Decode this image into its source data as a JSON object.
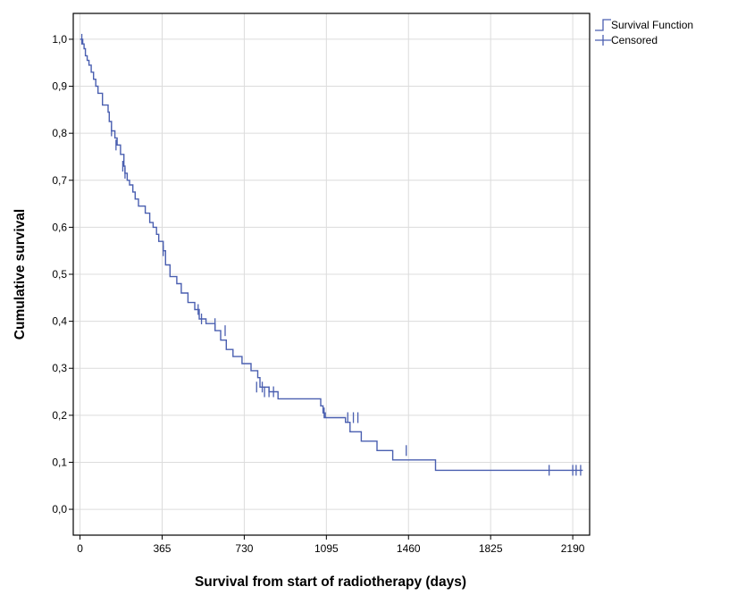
{
  "chart_data": {
    "type": "line",
    "subtype": "kaplan-meier step",
    "xlabel": "Survival from start of radiotherapy (days)",
    "ylabel": "Cumulative survival",
    "xlim": [
      -30,
      2265
    ],
    "ylim": [
      -0.055,
      1.055
    ],
    "x_ticks": [
      0,
      365,
      730,
      1095,
      1460,
      1825,
      2190
    ],
    "x_tick_labels": [
      "0",
      "365",
      "730",
      "1095",
      "1460",
      "1825",
      "2190"
    ],
    "y_ticks": [
      0.0,
      0.1,
      0.2,
      0.3,
      0.4,
      0.5,
      0.6,
      0.7,
      0.8,
      0.9,
      1.0
    ],
    "y_tick_labels": [
      "0,0",
      "0,1",
      "0,2",
      "0,3",
      "0,4",
      "0,5",
      "0,6",
      "0,7",
      "0,8",
      "0,9",
      "1,0"
    ],
    "grid": true,
    "legend_position": "top-right outside plot",
    "line_color": "#4a5fb0",
    "series": [
      {
        "name": "Survival Function",
        "x": [
          0,
          12,
          18,
          24,
          32,
          40,
          50,
          60,
          70,
          80,
          100,
          125,
          130,
          140,
          155,
          165,
          180,
          195,
          200,
          210,
          220,
          235,
          245,
          260,
          290,
          310,
          325,
          340,
          350,
          370,
          380,
          400,
          430,
          450,
          480,
          510,
          530,
          560,
          600,
          625,
          650,
          680,
          720,
          760,
          790,
          800,
          840,
          880,
          1070,
          1080,
          1090,
          1180,
          1200,
          1250,
          1320,
          1390,
          1460,
          1580,
          2235
        ],
        "y": [
          1.0,
          0.99,
          0.98,
          0.965,
          0.955,
          0.945,
          0.93,
          0.915,
          0.9,
          0.885,
          0.86,
          0.845,
          0.825,
          0.805,
          0.79,
          0.775,
          0.755,
          0.73,
          0.715,
          0.7,
          0.69,
          0.675,
          0.66,
          0.645,
          0.63,
          0.61,
          0.6,
          0.585,
          0.57,
          0.55,
          0.52,
          0.495,
          0.48,
          0.46,
          0.44,
          0.425,
          0.405,
          0.395,
          0.38,
          0.36,
          0.34,
          0.325,
          0.31,
          0.295,
          0.28,
          0.26,
          0.25,
          0.235,
          0.22,
          0.205,
          0.195,
          0.185,
          0.165,
          0.145,
          0.125,
          0.105,
          0.105,
          0.083,
          0.083
        ]
      },
      {
        "name": "Censored",
        "type": "censor-marks",
        "x": [
          8,
          140,
          160,
          190,
          200,
          370,
          525,
          540,
          600,
          645,
          785,
          810,
          820,
          840,
          860,
          1085,
          1190,
          1215,
          1235,
          1450,
          2085,
          2190,
          2205,
          2225
        ],
        "y": [
          1.0,
          0.805,
          0.775,
          0.73,
          0.715,
          0.55,
          0.425,
          0.405,
          0.395,
          0.38,
          0.26,
          0.26,
          0.25,
          0.25,
          0.25,
          0.205,
          0.195,
          0.195,
          0.195,
          0.125,
          0.083,
          0.083,
          0.083,
          0.083
        ]
      }
    ]
  }
}
